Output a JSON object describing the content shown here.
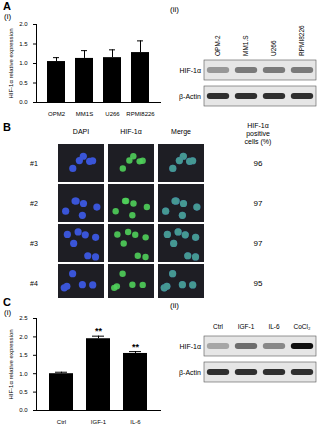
{
  "chart_data": [
    {
      "type": "bar",
      "panel_label": "A",
      "sub_label": "(i)",
      "ylabel": "HIF-1α relative expression",
      "categories": [
        "OPM2",
        "MM1S",
        "U266",
        "RPMI8226"
      ],
      "values": [
        1.05,
        1.13,
        1.15,
        1.28
      ],
      "errors": [
        0.1,
        0.2,
        0.2,
        0.3
      ],
      "color": "#000000",
      "ylim": [
        0,
        2
      ],
      "yticks": [
        {
          "value": 0,
          "label": "0.0"
        },
        {
          "value": 0.5,
          "label": "0.5"
        },
        {
          "value": 1,
          "label": "1.0"
        },
        {
          "value": 1.5,
          "label": "1.5"
        },
        {
          "value": 2,
          "label": "2.0"
        }
      ]
    },
    {
      "type": "bar",
      "panel_label": "C",
      "sub_label": "(i)",
      "ylabel": "HIF-1α relative expression",
      "categories": [
        "Ctrl",
        "IGF-1",
        "IL-6"
      ],
      "values": [
        1.0,
        1.95,
        1.55
      ],
      "errors": [
        0.04,
        0.07,
        0.05
      ],
      "color": "#000000",
      "ylim": [
        0,
        2.5
      ],
      "yticks": [
        {
          "value": 0,
          "label": "0.0"
        },
        {
          "value": 0.5,
          "label": "0.5"
        },
        {
          "value": 1,
          "label": "1.0"
        },
        {
          "value": 1.5,
          "label": "1.5"
        },
        {
          "value": 2,
          "label": "2.0"
        },
        {
          "value": 2.5,
          "label": "2.5"
        }
      ],
      "annotations": [
        {
          "category": "IGF-1",
          "text": "**"
        },
        {
          "category": "IL-6",
          "text": "**"
        }
      ]
    }
  ],
  "blots": [
    {
      "panel_label": "A",
      "sub_label": "(ii)",
      "lanes": [
        "OPM-2",
        "MM1.S",
        "U266",
        "RPMI8226"
      ],
      "rows": [
        {
          "name": "HIF-1α",
          "intensity": [
            0.5,
            0.6,
            0.6,
            0.6
          ]
        },
        {
          "name": "β-Actin",
          "intensity": [
            0.85,
            0.85,
            0.85,
            0.85
          ]
        }
      ]
    },
    {
      "panel_label": "C",
      "sub_label": "(ii)",
      "lanes": [
        "Ctrl",
        "IGF-1",
        "IL-6",
        "CoCl₂"
      ],
      "rows": [
        {
          "name": "HIF-1α",
          "intensity": [
            0.45,
            0.65,
            0.55,
            0.95
          ]
        },
        {
          "name": "β-Actin",
          "intensity": [
            0.85,
            0.85,
            0.85,
            0.85
          ]
        }
      ]
    }
  ],
  "immunofluorescence": {
    "panel_label": "B",
    "columns": [
      "DAPI",
      "HIF-1α",
      "Merge"
    ],
    "value_header": "HIF-1α positive cells (%)",
    "rows": [
      {
        "name": "#1",
        "value": 96
      },
      {
        "name": "#2",
        "value": 97
      },
      {
        "name": "#3",
        "value": 97
      },
      {
        "name": "#4",
        "value": 95
      }
    ]
  }
}
